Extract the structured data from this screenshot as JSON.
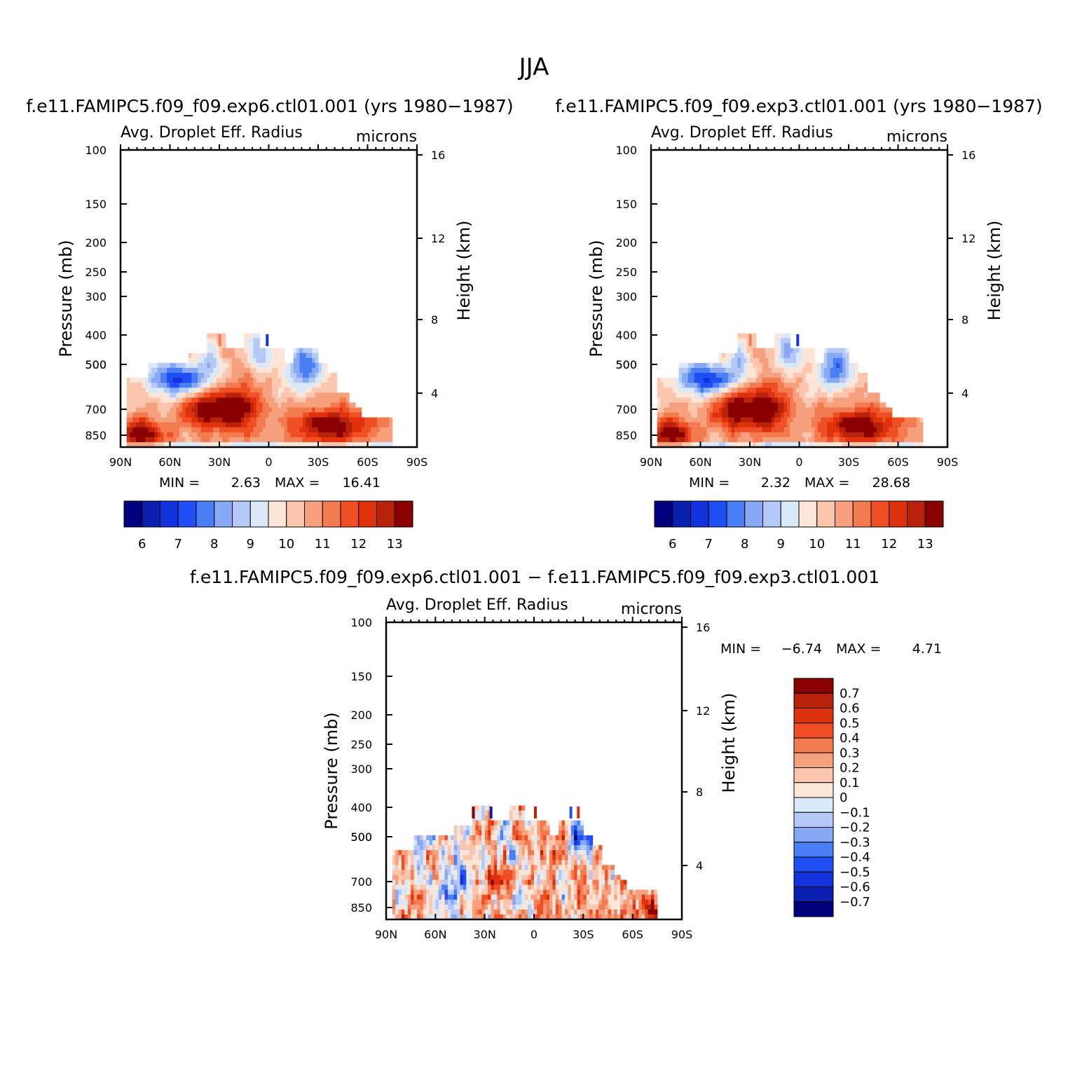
{
  "figure": {
    "title": "JJA",
    "diff_title": "f.e11.FAMIPC5.f09_f09.exp6.ctl01.001 − f.e11.FAMIPC5.f09_f09.exp3.ctl01.001"
  },
  "colors": {
    "abs_scale": [
      "#00007f",
      "#0a1fb0",
      "#1232dd",
      "#1f4ff4",
      "#4a7ef4",
      "#86a8f5",
      "#b4c9f8",
      "#d9e9fa",
      "#fde5d8",
      "#fbc6ad",
      "#f7a07e",
      "#f47a50",
      "#f04e24",
      "#e0310d",
      "#b82209",
      "#8a0000"
    ],
    "diff_scale": [
      "#8a0000",
      "#b82209",
      "#e0310d",
      "#f04e24",
      "#f47a50",
      "#f7a07e",
      "#fbc6ad",
      "#fde5d8",
      "#d9e9fa",
      "#b4c9f8",
      "#86a8f5",
      "#4a7ef4",
      "#1f4ff4",
      "#1232dd",
      "#0a1fb0",
      "#00007f"
    ]
  },
  "chart_data": [
    {
      "type": "heatmap",
      "panel": "left",
      "case": "f.e11.FAMIPC5.f09_f09.exp6.ctl01.001 (yrs 1980−1987)",
      "title": "Avg. Droplet Eff. Radius",
      "units": "microns",
      "ylabel": "Pressure (mb)",
      "y2label": "Height (km)",
      "x_ticks": [
        "90N",
        "60N",
        "30N",
        "0",
        "30S",
        "60S",
        "90S"
      ],
      "y_ticks": [
        "100",
        "150",
        "200",
        "250",
        "300",
        "400",
        "500",
        "500",
        "700",
        "850"
      ],
      "y2_ticks": [
        "16",
        "12",
        "8",
        "4"
      ],
      "min_label": "MIN =",
      "min": "2.63",
      "max_label": "MAX =",
      "max": "16.41",
      "colorbar_labels": [
        "6",
        "7",
        "8",
        "9",
        "10",
        "11",
        "12",
        "13"
      ]
    },
    {
      "type": "heatmap",
      "panel": "right",
      "case": "f.e11.FAMIPC5.f09_f09.exp3.ctl01.001 (yrs 1980−1987)",
      "title": "Avg. Droplet Eff. Radius",
      "units": "microns",
      "ylabel": "Pressure (mb)",
      "y2label": "Height (km)",
      "x_ticks": [
        "90N",
        "60N",
        "30N",
        "0",
        "30S",
        "60S",
        "90S"
      ],
      "y_ticks": [
        "100",
        "150",
        "200",
        "250",
        "300",
        "400",
        "500",
        "500",
        "700",
        "850"
      ],
      "y2_ticks": [
        "16",
        "12",
        "8",
        "4"
      ],
      "min_label": "MIN =",
      "min": "2.32",
      "max_label": "MAX =",
      "max": "28.68",
      "colorbar_labels": [
        "6",
        "7",
        "8",
        "9",
        "10",
        "11",
        "12",
        "13"
      ]
    },
    {
      "type": "heatmap",
      "panel": "difference",
      "title": "Avg. Droplet Eff. Radius",
      "units": "microns",
      "ylabel": "Pressure (mb)",
      "y2label": "Height (km)",
      "x_ticks": [
        "90N",
        "60N",
        "30N",
        "0",
        "30S",
        "60S",
        "90S"
      ],
      "y_ticks": [
        "100",
        "150",
        "200",
        "250",
        "300",
        "400",
        "500",
        "500",
        "700",
        "850"
      ],
      "y2_ticks": [
        "16",
        "12",
        "8",
        "4"
      ],
      "min_label": "MIN =",
      "min": "−6.74",
      "max_label": "MAX =",
      "max": "4.71",
      "colorbar_labels": [
        "0.7",
        "0.6",
        "0.5",
        "0.4",
        "0.3",
        "0.2",
        "0.1",
        "0",
        "−0.1",
        "−0.2",
        "−0.3",
        "−0.4",
        "−0.5",
        "−0.6",
        "−0.7"
      ]
    }
  ]
}
